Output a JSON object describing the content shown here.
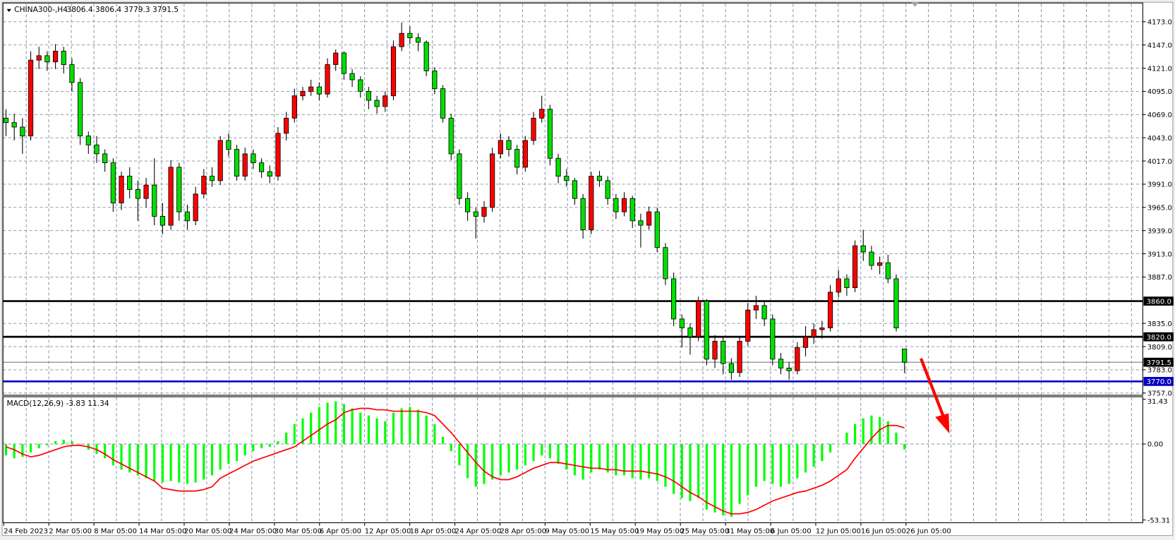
{
  "header": {
    "symbol": "CHINA300-,H4",
    "ohlc_text": "3806.4 3806.4 3779.3 3791.5",
    "menu_icon": "triangle-down-icon"
  },
  "macd": {
    "label": "MACD(12,26,9) -3.83 11.34",
    "axis_labels": [
      "31.43",
      "0.00",
      "-53.31"
    ],
    "axis_values": [
      31.43,
      0,
      -53.31
    ]
  },
  "price_axis": {
    "labels": [
      "4173.0",
      "4147.0",
      "4121.0",
      "4095.0",
      "4069.0",
      "4043.0",
      "4017.0",
      "3991.0",
      "3965.0",
      "3939.0",
      "3913.0",
      "3887.0",
      "3835.0",
      "3809.0",
      "3783.0",
      "3757.0"
    ],
    "values": [
      4173,
      4147,
      4121,
      4095,
      4069,
      4043,
      4017,
      3991,
      3965,
      3939,
      3913,
      3887,
      3835,
      3809,
      3783,
      3757
    ]
  },
  "levels": [
    {
      "label": "3860.0",
      "value": 3860,
      "color": "#000000"
    },
    {
      "label": "3820.0",
      "value": 3820,
      "color": "#000000"
    },
    {
      "label": "3791.5",
      "value": 3791.5,
      "color": "#708090"
    },
    {
      "label": "3770.0",
      "value": 3770,
      "color": "#0000c0"
    }
  ],
  "time_axis": [
    "24 Feb 2023",
    "2 Mar 05:00",
    "8 Mar 05:00",
    "14 Mar 05:00",
    "20 Mar 05:00",
    "24 Mar 05:00",
    "30 Mar 05:00",
    "6 Apr 05:00",
    "12 Apr 05:00",
    "18 Apr 05:00",
    "24 Apr 05:00",
    "28 Apr 05:00",
    "9 May 05:00",
    "15 May 05:00",
    "19 May 05:00",
    "25 May 05:00",
    "31 May 05:00",
    "6 Jun 05:00",
    "12 Jun 05:00",
    "16 Jun 05:00",
    "26 Jun 05:00"
  ],
  "colors": {
    "up": "#ff0000",
    "down": "#00e000",
    "macd_hist": "#00ff00",
    "signal": "#ff0000",
    "arrow": "#ff0000"
  },
  "chart_data": {
    "type": "candlestick",
    "price_range": [
      3757,
      4173
    ],
    "grid": true,
    "candles": [
      [
        4065,
        4075,
        4045,
        4060
      ],
      [
        4060,
        4070,
        4040,
        4055
      ],
      [
        4055,
        4065,
        4025,
        4045
      ],
      [
        4045,
        4140,
        4040,
        4130
      ],
      [
        4130,
        4145,
        4120,
        4135
      ],
      [
        4135,
        4140,
        4118,
        4128
      ],
      [
        4128,
        4148,
        4120,
        4140
      ],
      [
        4140,
        4145,
        4115,
        4125
      ],
      [
        4125,
        4132,
        4095,
        4105
      ],
      [
        4105,
        4110,
        4035,
        4045
      ],
      [
        4045,
        4050,
        4025,
        4035
      ],
      [
        4035,
        4045,
        4015,
        4025
      ],
      [
        4025,
        4030,
        4005,
        4015
      ],
      [
        4015,
        4020,
        3960,
        3970
      ],
      [
        3970,
        4005,
        3962,
        4000
      ],
      [
        4000,
        4010,
        3975,
        3985
      ],
      [
        3985,
        3995,
        3950,
        3975
      ],
      [
        3975,
        3998,
        3965,
        3990
      ],
      [
        3990,
        4020,
        3945,
        3955
      ],
      [
        3955,
        3970,
        3935,
        3945
      ],
      [
        3945,
        4018,
        3940,
        4010
      ],
      [
        4010,
        4015,
        3950,
        3960
      ],
      [
        3960,
        3968,
        3940,
        3950
      ],
      [
        3950,
        3988,
        3945,
        3980
      ],
      [
        3980,
        4008,
        3975,
        4000
      ],
      [
        4000,
        4010,
        3988,
        3995
      ],
      [
        3995,
        4045,
        3990,
        4040
      ],
      [
        4040,
        4048,
        4022,
        4030
      ],
      [
        4030,
        4035,
        3995,
        4000
      ],
      [
        4000,
        4032,
        3995,
        4025
      ],
      [
        4025,
        4030,
        4008,
        4015
      ],
      [
        4015,
        4020,
        3998,
        4005
      ],
      [
        4005,
        4012,
        3992,
        4000
      ],
      [
        4000,
        4055,
        3995,
        4048
      ],
      [
        4048,
        4072,
        4040,
        4065
      ],
      [
        4065,
        4098,
        4060,
        4090
      ],
      [
        4090,
        4100,
        4085,
        4095
      ],
      [
        4095,
        4108,
        4090,
        4100
      ],
      [
        4100,
        4105,
        4085,
        4092
      ],
      [
        4092,
        4132,
        4088,
        4125
      ],
      [
        4125,
        4142,
        4118,
        4138
      ],
      [
        4138,
        4140,
        4108,
        4115
      ],
      [
        4115,
        4120,
        4100,
        4108
      ],
      [
        4108,
        4112,
        4088,
        4095
      ],
      [
        4095,
        4100,
        4075,
        4085
      ],
      [
        4085,
        4090,
        4070,
        4078
      ],
      [
        4078,
        4095,
        4072,
        4090
      ],
      [
        4090,
        4152,
        4085,
        4145
      ],
      [
        4145,
        4172,
        4140,
        4160
      ],
      [
        4160,
        4168,
        4148,
        4155
      ],
      [
        4155,
        4160,
        4140,
        4150
      ],
      [
        4150,
        4152,
        4112,
        4118
      ],
      [
        4118,
        4122,
        4092,
        4098
      ],
      [
        4098,
        4102,
        4060,
        4065
      ],
      [
        4065,
        4070,
        4018,
        4025
      ],
      [
        4025,
        4030,
        3968,
        3975
      ],
      [
        3975,
        3982,
        3950,
        3960
      ],
      [
        3960,
        3965,
        3930,
        3955
      ],
      [
        3955,
        3972,
        3948,
        3965
      ],
      [
        3965,
        4032,
        3960,
        4025
      ],
      [
        4025,
        4048,
        4020,
        4040
      ],
      [
        4040,
        4045,
        4022,
        4030
      ],
      [
        4030,
        4035,
        4002,
        4010
      ],
      [
        4010,
        4045,
        4005,
        4040
      ],
      [
        4040,
        4072,
        4035,
        4065
      ],
      [
        4065,
        4090,
        4060,
        4075
      ],
      [
        4075,
        4080,
        4012,
        4020
      ],
      [
        4020,
        4025,
        3992,
        4000
      ],
      [
        4000,
        4008,
        3988,
        3995
      ],
      [
        3995,
        3998,
        3968,
        3975
      ],
      [
        3975,
        3980,
        3930,
        3940
      ],
      [
        3940,
        4005,
        3935,
        4000
      ],
      [
        4000,
        4006,
        3988,
        3995
      ],
      [
        3995,
        4000,
        3968,
        3975
      ],
      [
        3975,
        3980,
        3952,
        3960
      ],
      [
        3960,
        3982,
        3955,
        3975
      ],
      [
        3975,
        3978,
        3942,
        3950
      ],
      [
        3950,
        3958,
        3920,
        3945
      ],
      [
        3945,
        3966,
        3940,
        3960
      ],
      [
        3960,
        3965,
        3915,
        3920
      ],
      [
        3920,
        3925,
        3878,
        3885
      ],
      [
        3885,
        3892,
        3832,
        3840
      ],
      [
        3840,
        3845,
        3808,
        3830
      ],
      [
        3830,
        3835,
        3800,
        3820
      ],
      [
        3820,
        3865,
        3815,
        3860
      ],
      [
        3860,
        3862,
        3788,
        3795
      ],
      [
        3795,
        3822,
        3785,
        3815
      ],
      [
        3815,
        3820,
        3778,
        3790
      ],
      [
        3790,
        3796,
        3772,
        3780
      ],
      [
        3780,
        3820,
        3775,
        3815
      ],
      [
        3815,
        3858,
        3810,
        3850
      ],
      [
        3850,
        3866,
        3840,
        3855
      ],
      [
        3855,
        3860,
        3832,
        3840
      ],
      [
        3840,
        3845,
        3788,
        3795
      ],
      [
        3795,
        3802,
        3778,
        3785
      ],
      [
        3785,
        3792,
        3772,
        3782
      ],
      [
        3782,
        3814,
        3778,
        3808
      ],
      [
        3808,
        3832,
        3798,
        3820
      ],
      [
        3820,
        3835,
        3812,
        3828
      ],
      [
        3828,
        3838,
        3818,
        3830
      ],
      [
        3830,
        3878,
        3826,
        3870
      ],
      [
        3870,
        3895,
        3864,
        3885
      ],
      [
        3885,
        3890,
        3866,
        3875
      ],
      [
        3875,
        3928,
        3870,
        3922
      ],
      [
        3922,
        3940,
        3905,
        3915
      ],
      [
        3915,
        3922,
        3895,
        3900
      ],
      [
        3900,
        3910,
        3890,
        3903
      ],
      [
        3903,
        3912,
        3880,
        3885
      ],
      [
        3885,
        3890,
        3826,
        3830
      ],
      [
        3806.4,
        3806.4,
        3779.3,
        3791.5
      ]
    ],
    "macd_histogram": [
      -8,
      -10,
      -9,
      -6,
      -3,
      -1,
      2,
      3,
      2,
      0,
      -4,
      -7,
      -10,
      -15,
      -18,
      -20,
      -22,
      -24,
      -26,
      -27,
      -26,
      -27,
      -28,
      -27,
      -25,
      -22,
      -18,
      -14,
      -12,
      -8,
      -5,
      -3,
      -2,
      2,
      8,
      14,
      18,
      22,
      26,
      29,
      30,
      28,
      25,
      22,
      20,
      18,
      16,
      22,
      25,
      26,
      24,
      20,
      14,
      5,
      -5,
      -15,
      -24,
      -30,
      -28,
      -25,
      -22,
      -20,
      -18,
      -15,
      -12,
      -8,
      -10,
      -14,
      -18,
      -22,
      -25,
      -20,
      -18,
      -20,
      -22,
      -22,
      -24,
      -25,
      -24,
      -26,
      -30,
      -35,
      -38,
      -40,
      -38,
      -46,
      -48,
      -50,
      -51,
      -42,
      -36,
      -30,
      -26,
      -28,
      -30,
      -28,
      -24,
      -20,
      -16,
      -12,
      -6,
      0,
      8,
      14,
      18,
      20,
      19,
      16,
      8,
      -3.83
    ],
    "macd_signal": [
      -2,
      -4,
      -7,
      -9,
      -8,
      -6,
      -4,
      -2,
      -1,
      -1,
      -2,
      -4,
      -7,
      -11,
      -14,
      -17,
      -20,
      -23,
      -26,
      -31,
      -32,
      -33,
      -33,
      -33,
      -32,
      -30,
      -24,
      -21,
      -18,
      -15,
      -12,
      -10,
      -8,
      -6,
      -4,
      -2,
      2,
      6,
      10,
      14,
      17,
      22,
      24,
      25,
      25,
      24,
      24,
      23,
      23,
      23,
      23,
      22,
      20,
      14,
      8,
      1,
      -6,
      -13,
      -19,
      -23,
      -25,
      -25,
      -23,
      -20,
      -17,
      -15,
      -13,
      -13,
      -14,
      -15,
      -16,
      -17,
      -17,
      -18,
      -18,
      -19,
      -19,
      -19,
      -20,
      -21,
      -23,
      -26,
      -30,
      -34,
      -37,
      -41,
      -44,
      -47,
      -49,
      -49,
      -48,
      -46,
      -43,
      -40,
      -38,
      -36,
      -34,
      -33,
      -31,
      -29,
      -26,
      -22,
      -18,
      -10,
      -3,
      4,
      10,
      13,
      13,
      11.34
    ],
    "macd_range": [
      -53.31,
      31.43
    ]
  }
}
